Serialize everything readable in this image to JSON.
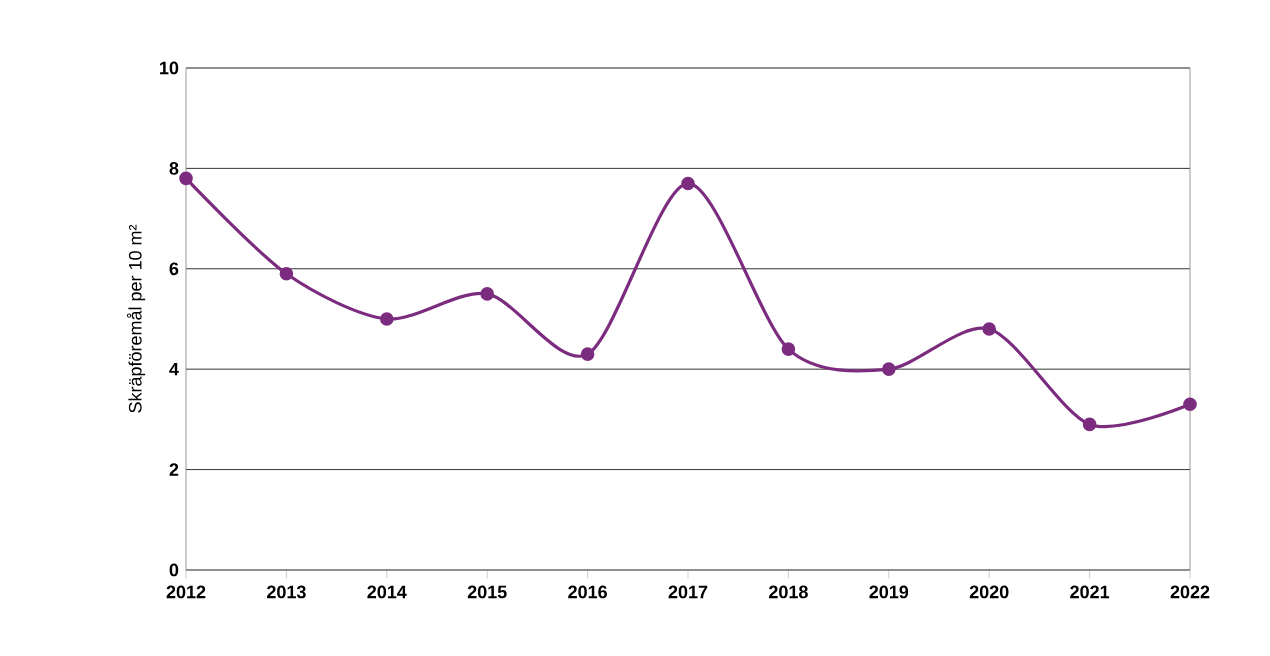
{
  "chart_data": {
    "type": "line",
    "ylabel": "Skräpföremål per 10 m²",
    "x": [
      2012,
      2013,
      2014,
      2015,
      2016,
      2017,
      2018,
      2019,
      2020,
      2021,
      2022
    ],
    "values": [
      7.8,
      5.9,
      5.0,
      5.5,
      4.3,
      7.7,
      4.4,
      4.0,
      4.8,
      2.9,
      3.3
    ],
    "color": "#7b2c7f",
    "marker": "circle",
    "line_style": "solid",
    "xlim": [
      2012,
      2022
    ],
    "xticks": [
      2012,
      2013,
      2014,
      2015,
      2016,
      2017,
      2018,
      2019,
      2020,
      2021,
      2022
    ],
    "ylim": [
      0,
      10
    ],
    "yticks": [
      0,
      2,
      4,
      6,
      8,
      10
    ],
    "grid": "y"
  }
}
